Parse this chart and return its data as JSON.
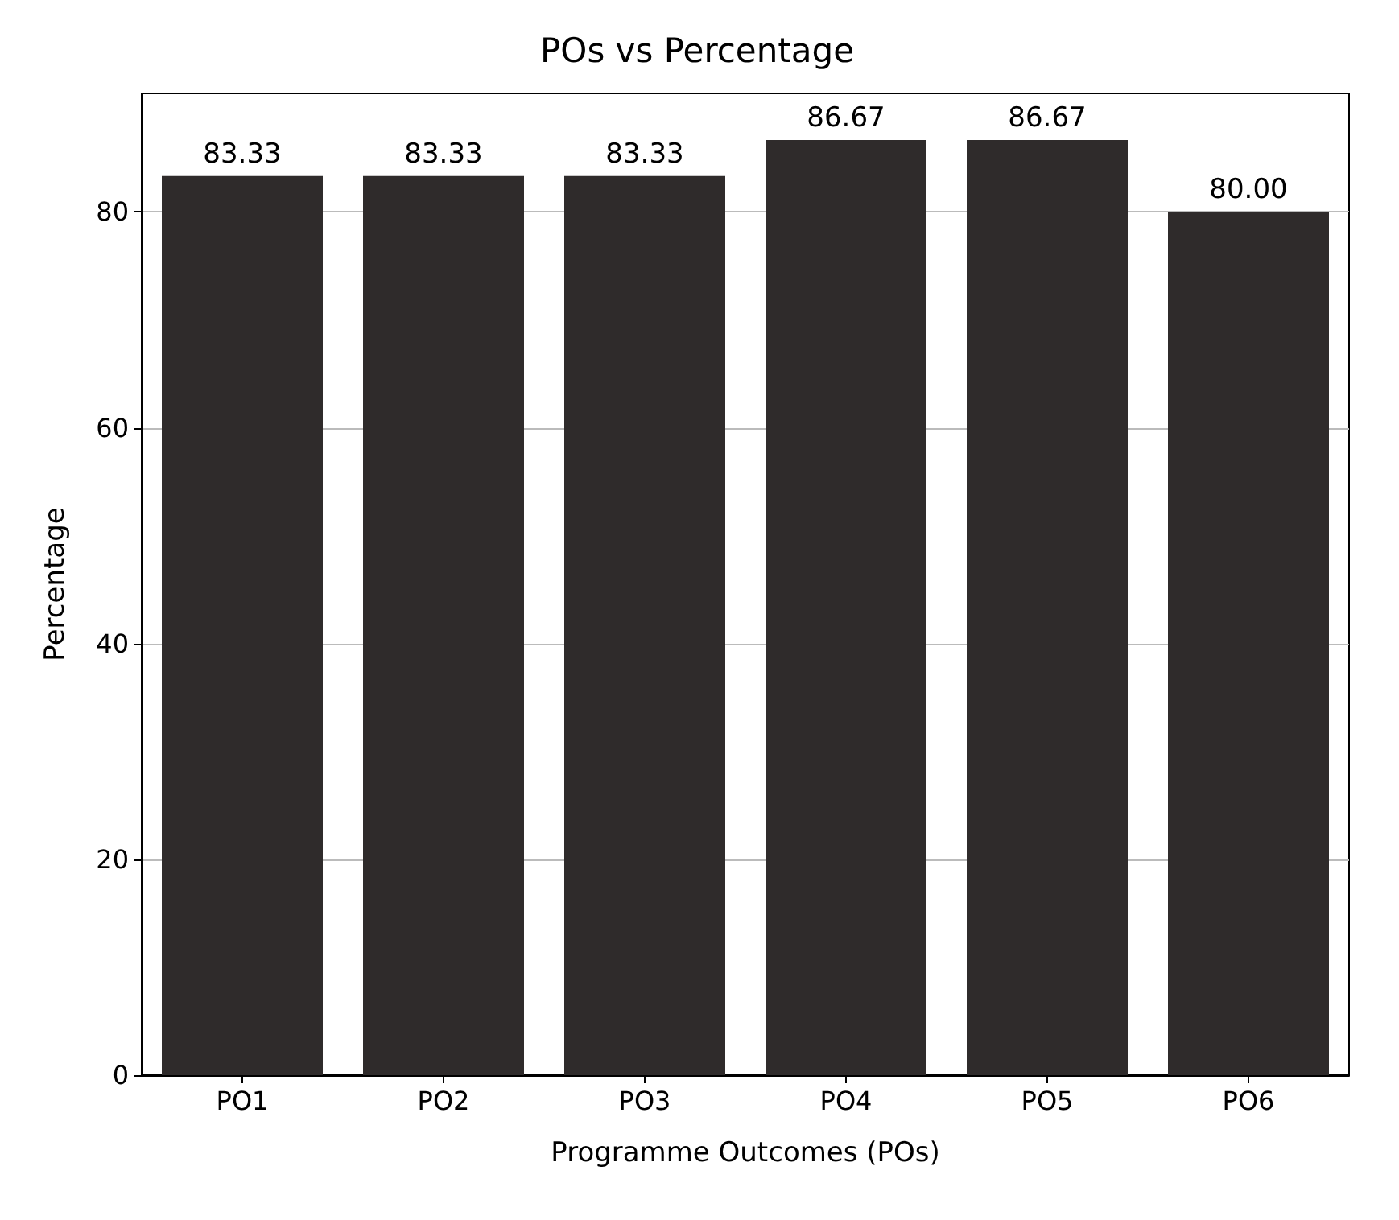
{
  "chart_data": {
    "type": "bar",
    "title": "POs vs Percentage",
    "xlabel": "Programme Outcomes (POs)",
    "ylabel": "Percentage",
    "categories": [
      "PO1",
      "PO2",
      "PO3",
      "PO4",
      "PO5",
      "PO6"
    ],
    "values": [
      83.33,
      83.33,
      83.33,
      86.67,
      86.67,
      80.0
    ],
    "value_labels": [
      "83.33",
      "83.33",
      "83.33",
      "86.67",
      "86.67",
      "80.00"
    ],
    "color": "#2f2b2b",
    "ylim": [
      0,
      91
    ],
    "yticks": [
      0,
      20,
      40,
      60,
      80
    ],
    "grid": "y"
  }
}
